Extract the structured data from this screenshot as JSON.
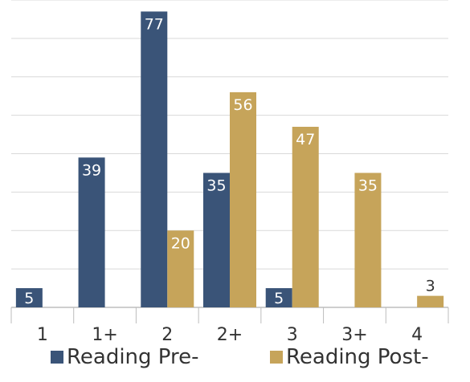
{
  "chart_data": {
    "type": "bar",
    "title": "",
    "xlabel": "",
    "ylabel": "",
    "ylim": [
      0,
      80
    ],
    "grid": true,
    "legend_position": "bottom",
    "categories": [
      "1",
      "1+",
      "2",
      "2+",
      "3",
      "3+",
      "4"
    ],
    "series": [
      {
        "name": "Reading Pre-",
        "color": "#3a5478",
        "values": [
          5,
          39,
          77,
          35,
          5,
          null,
          null
        ]
      },
      {
        "name": "Reading Post-",
        "color": "#c6a45a",
        "values": [
          null,
          null,
          20,
          56,
          47,
          35,
          3
        ]
      }
    ]
  }
}
